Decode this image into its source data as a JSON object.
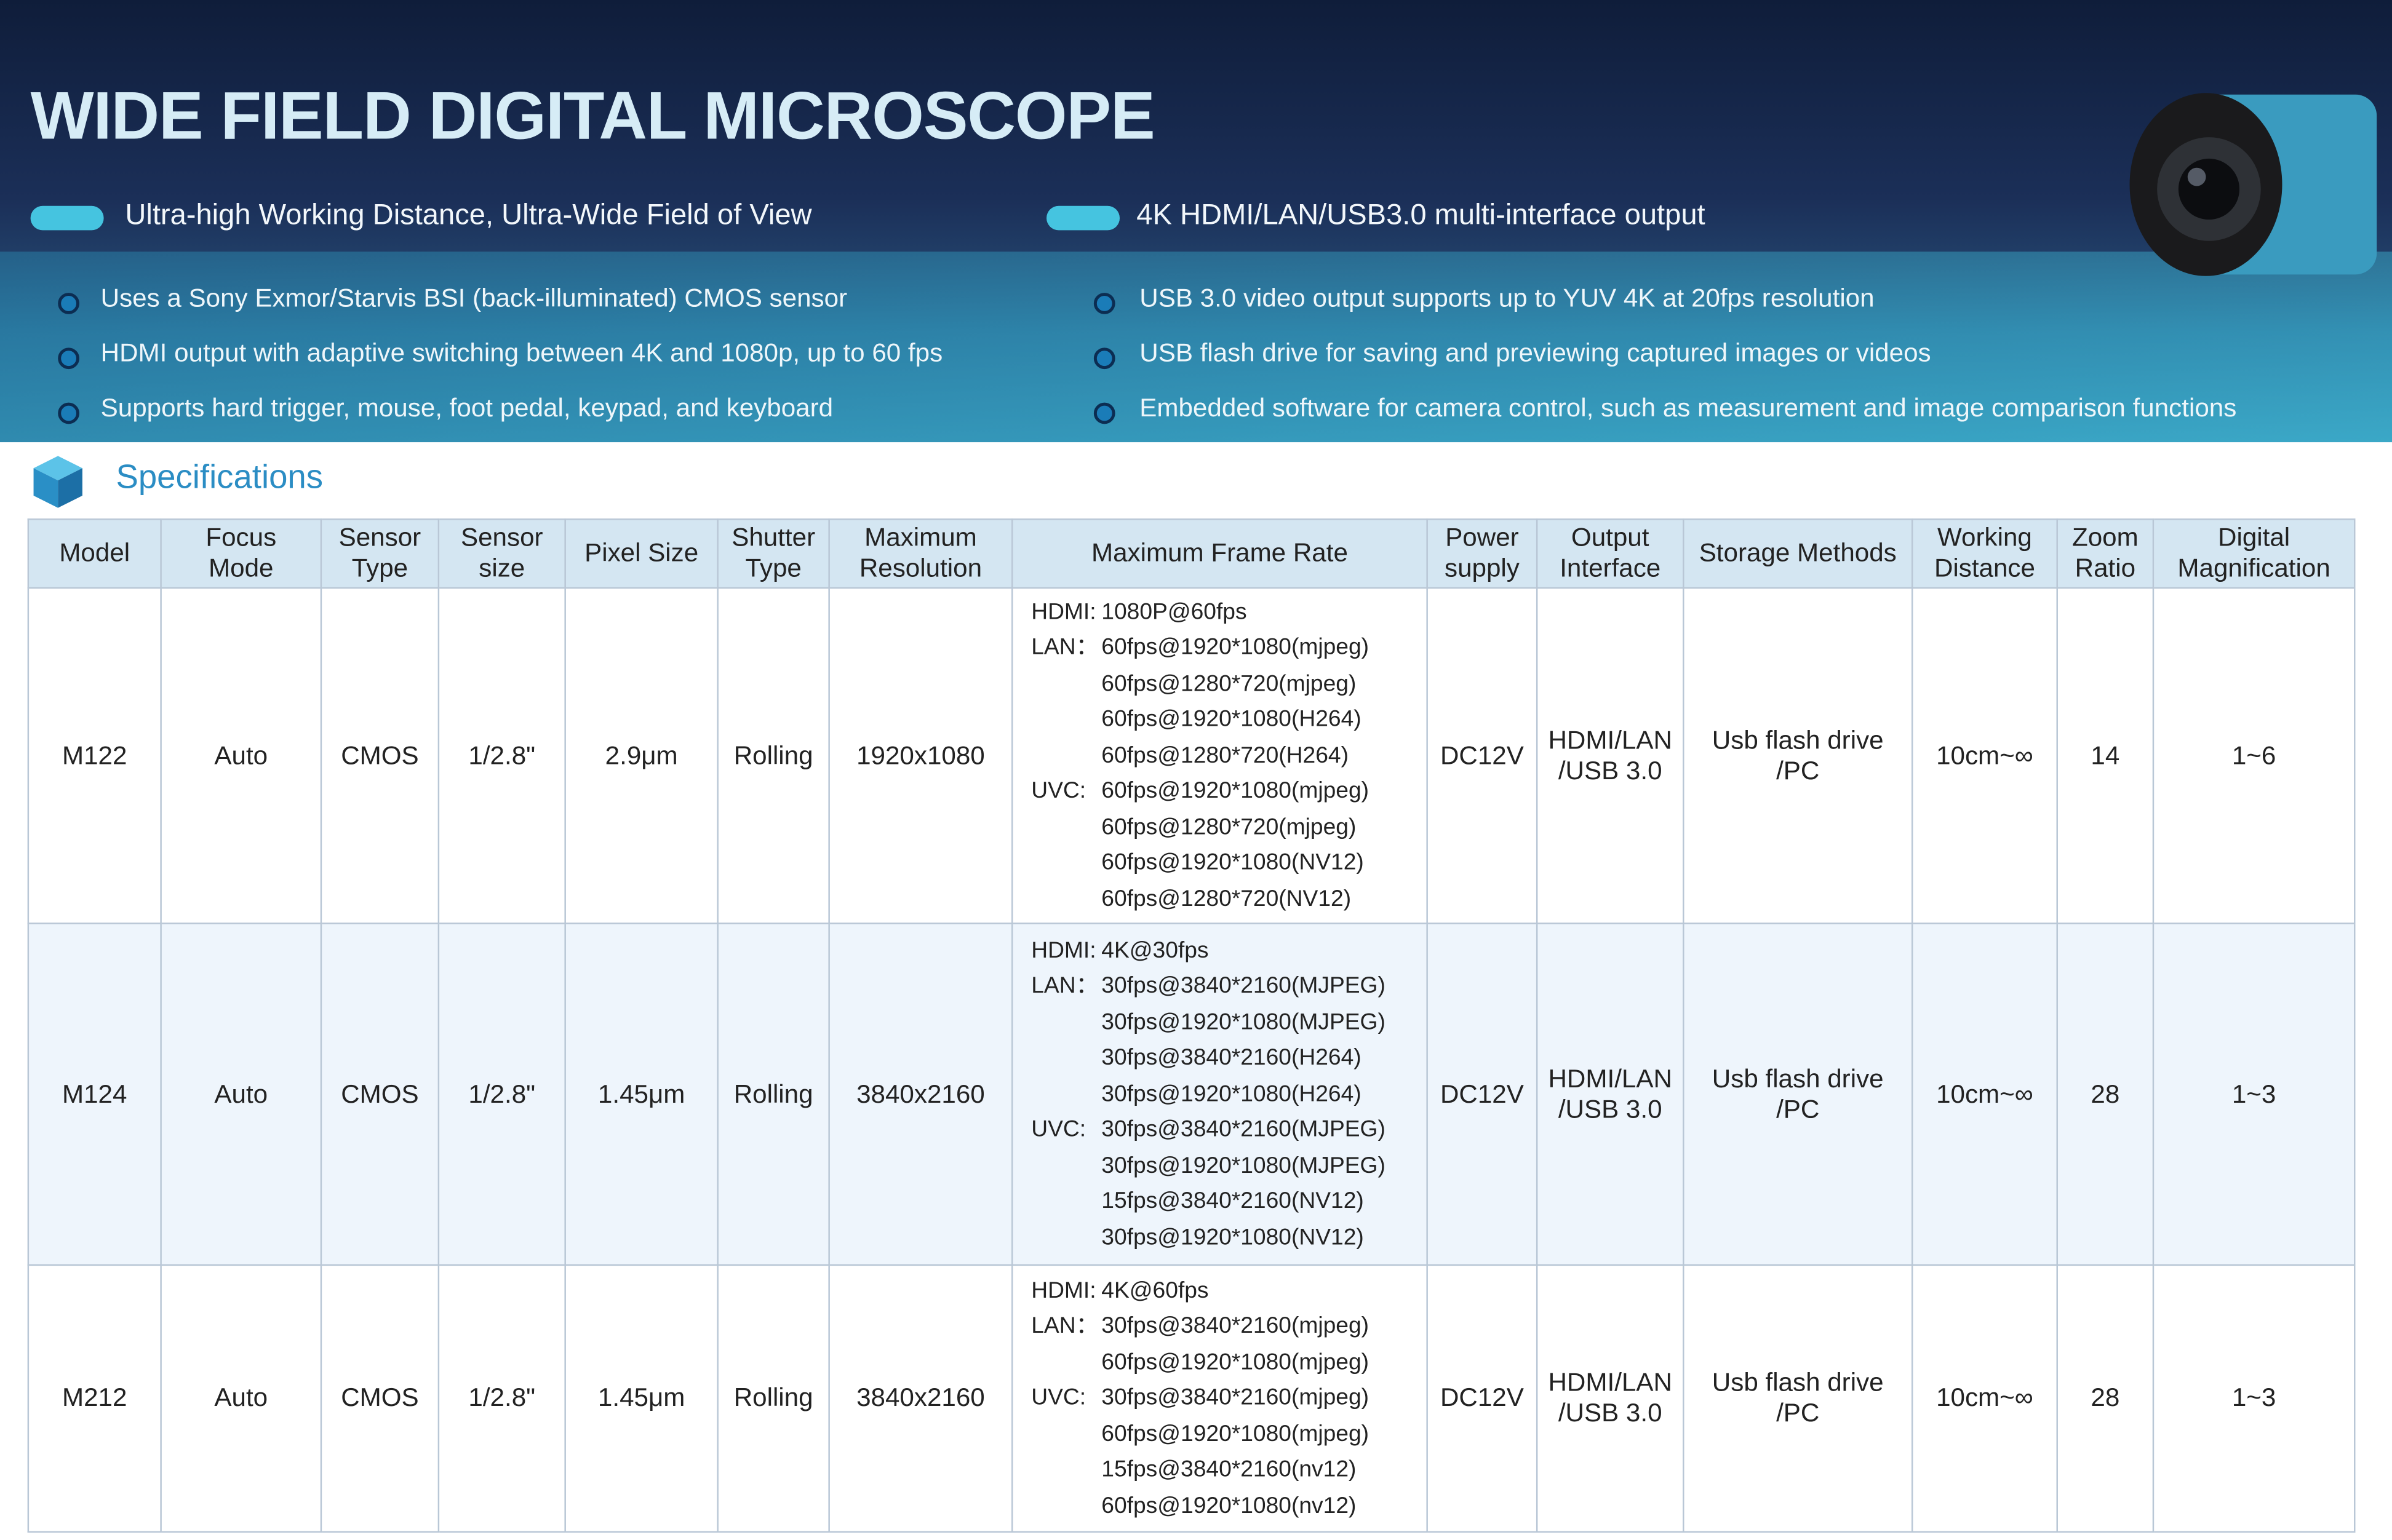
{
  "header": {
    "title": "WIDE FIELD DIGITAL MICROSCOPE",
    "highlights": [
      "Ultra-high Working Distance, Ultra-Wide Field of View",
      "4K HDMI/LAN/USB3.0 multi-interface output"
    ],
    "features": [
      "Uses a Sony Exmor/Starvis BSI (back-illuminated) CMOS sensor",
      "HDMI output with adaptive switching between 4K and 1080p, up to 60 fps",
      "Supports hard trigger, mouse, foot pedal, keypad, and keyboard",
      "USB 3.0 video output supports up to YUV 4K at 20fps resolution",
      "USB flash drive for saving and previewing captured images or videos",
      "Embedded software for camera control, such as measurement and image comparison functions"
    ]
  },
  "section": {
    "title": "Specifications"
  },
  "table": {
    "columns": [
      "Model",
      "Focus\nMode",
      "Sensor\nType",
      "Sensor\nsize",
      "Pixel Size",
      "Shutter\nType",
      "Maximum\nResolution",
      "Maximum Frame Rate",
      "Power\nsupply",
      "Output\nInterface",
      "Storage Methods",
      "Working\nDistance",
      "Zoom\nRatio",
      "Digital\nMagnification"
    ],
    "rows": [
      {
        "cells": [
          "M122",
          "Auto",
          "CMOS",
          "1/2.8\"",
          "2.9μm",
          "Rolling",
          "1920x1080"
        ],
        "frame_rate": [
          {
            "label": "HDMI:",
            "lines": [
              "1080P@60fps"
            ]
          },
          {
            "label": "LAN：",
            "lines": [
              "60fps@1920*1080(mjpeg)",
              "60fps@1280*720(mjpeg)",
              "60fps@1920*1080(H264)",
              "60fps@1280*720(H264)"
            ]
          },
          {
            "label": "UVC:",
            "lines": [
              "60fps@1920*1080(mjpeg)",
              "60fps@1280*720(mjpeg)",
              "60fps@1920*1080(NV12)",
              "60fps@1280*720(NV12)"
            ]
          }
        ],
        "rest": [
          "DC12V",
          "HDMI/LAN\n/USB 3.0",
          "Usb flash drive\n/PC",
          "10cm~∞",
          "14",
          "1~6"
        ]
      },
      {
        "cells": [
          "M124",
          "Auto",
          "CMOS",
          "1/2.8\"",
          "1.45μm",
          "Rolling",
          "3840x2160"
        ],
        "frame_rate": [
          {
            "label": "HDMI:",
            "lines": [
              "4K@30fps"
            ]
          },
          {
            "label": "LAN：",
            "lines": [
              "30fps@3840*2160(MJPEG)",
              "30fps@1920*1080(MJPEG)",
              "30fps@3840*2160(H264)",
              "30fps@1920*1080(H264)"
            ]
          },
          {
            "label": "UVC:",
            "lines": [
              "30fps@3840*2160(MJPEG)",
              "30fps@1920*1080(MJPEG)",
              "15fps@3840*2160(NV12)",
              "30fps@1920*1080(NV12)"
            ]
          }
        ],
        "rest": [
          "DC12V",
          "HDMI/LAN\n/USB 3.0",
          "Usb flash drive\n/PC",
          "10cm~∞",
          "28",
          "1~3"
        ]
      },
      {
        "cells": [
          "M212",
          "Auto",
          "CMOS",
          "1/2.8\"",
          "1.45μm",
          "Rolling",
          "3840x2160"
        ],
        "frame_rate": [
          {
            "label": "HDMI:",
            "lines": [
              "4K@60fps"
            ]
          },
          {
            "label": "LAN：",
            "lines": [
              "30fps@3840*2160(mjpeg)",
              "60fps@1920*1080(mjpeg)"
            ]
          },
          {
            "label": "UVC:",
            "lines": [
              "30fps@3840*2160(mjpeg)",
              "60fps@1920*1080(mjpeg)",
              "15fps@3840*2160(nv12)",
              "60fps@1920*1080(nv12)"
            ]
          }
        ],
        "rest": [
          "DC12V",
          "HDMI/LAN\n/USB 3.0",
          "Usb flash drive\n/PC",
          "10cm~∞",
          "28",
          "1~3"
        ]
      }
    ]
  }
}
